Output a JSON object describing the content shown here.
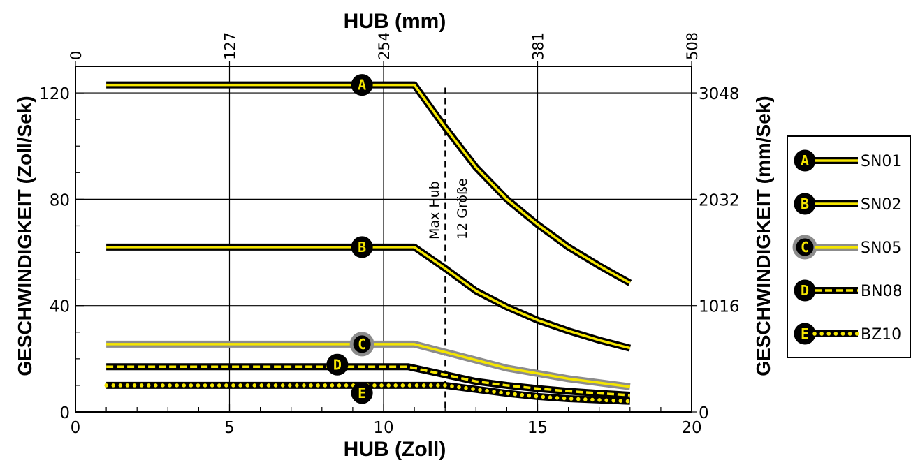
{
  "chart_data": {
    "type": "line",
    "xlabel": "HUB (Zoll)",
    "xlabel_top": "HUB (mm)",
    "ylabel": "GESCHWINDIGKEIT (Zoll/Sek)",
    "ylabel_right": "GESCHWINDIGKEIT (mm/Sek)",
    "xlim": [
      0,
      20
    ],
    "ylim": [
      0,
      130
    ],
    "x_ticks": [
      0,
      5,
      10,
      15,
      20
    ],
    "y_ticks": [
      0,
      40,
      80,
      120
    ],
    "top_ticks": [
      {
        "x": 0,
        "label": "0"
      },
      {
        "x": 5,
        "label": "127"
      },
      {
        "x": 10,
        "label": "254"
      },
      {
        "x": 15,
        "label": "381"
      },
      {
        "x": 20,
        "label": "508"
      }
    ],
    "right_ticks": [
      {
        "y": 0,
        "label": "0"
      },
      {
        "y": 40,
        "label": "1016"
      },
      {
        "y": 80,
        "label": "2032"
      },
      {
        "y": 120,
        "label": "3048"
      }
    ],
    "grid": true,
    "annotation": {
      "x": 12,
      "line1": "Max Hub",
      "line2": "12 Größe"
    },
    "legend_position": "right",
    "series": [
      {
        "name": "SN01",
        "marker": "A",
        "style": "double",
        "color": "#f5e600",
        "label_x": 9.3,
        "x": [
          1,
          11,
          12,
          13,
          14,
          15,
          16,
          17,
          18
        ],
        "y": [
          123,
          123,
          107,
          92,
          80,
          70.5,
          62,
          55,
          48.5
        ]
      },
      {
        "name": "SN02",
        "marker": "B",
        "style": "double",
        "color": "#000000",
        "label_x": 9.3,
        "x": [
          1,
          11,
          12,
          13,
          14,
          15,
          16,
          17,
          18
        ],
        "y": [
          62,
          62,
          54,
          45.5,
          39.5,
          34.5,
          30.5,
          27,
          24
        ]
      },
      {
        "name": "SN05",
        "marker": "C",
        "style": "gray",
        "color": "#f5e600",
        "label_x": 9.3,
        "x": [
          1,
          9.3,
          10.3,
          11,
          12,
          13,
          14,
          15,
          16,
          17,
          18
        ],
        "y": [
          25.5,
          25.5,
          25.5,
          25.5,
          22.5,
          19.5,
          16.5,
          14.5,
          12.5,
          11,
          9.5
        ]
      },
      {
        "name": "BN08",
        "marker": "D",
        "style": "dashed",
        "color": "#f5e600",
        "label_x": 8.5,
        "x": [
          1,
          10.8,
          12,
          13,
          14,
          15,
          16,
          17,
          18
        ],
        "y": [
          17,
          17,
          14,
          11.5,
          10,
          8.8,
          7.8,
          7,
          6.3
        ]
      },
      {
        "name": "BZ10",
        "marker": "E",
        "style": "dotted",
        "color": "#f5e600",
        "label_x": 9.3,
        "x": [
          1,
          12,
          13,
          14,
          15,
          16,
          17,
          18
        ],
        "y": [
          10,
          10,
          8.5,
          7,
          5.8,
          5,
          4.5,
          4
        ]
      }
    ]
  }
}
